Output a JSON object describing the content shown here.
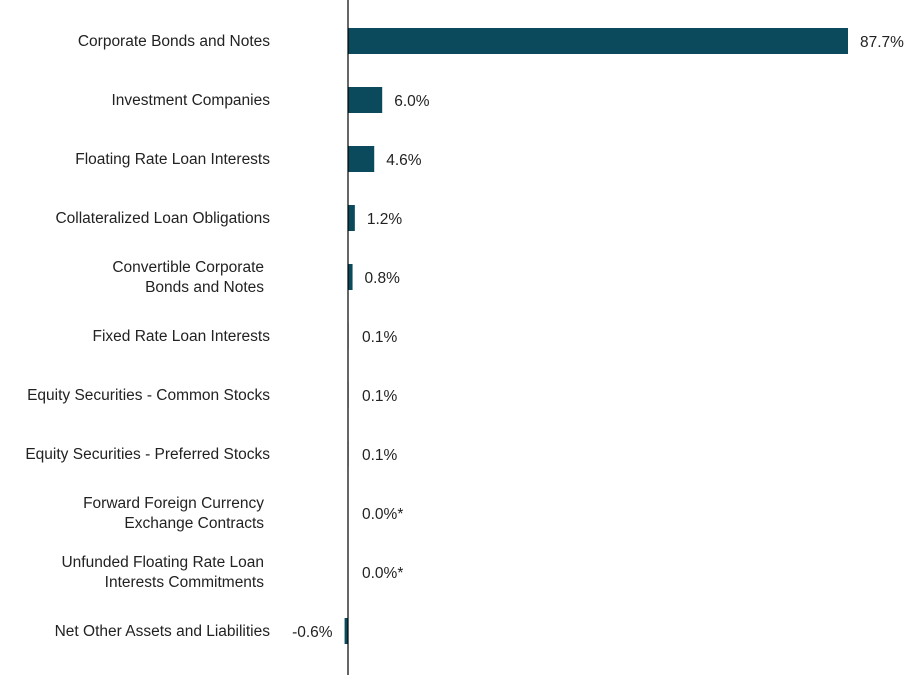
{
  "chart_data": {
    "type": "bar",
    "orientation": "horizontal",
    "title": "",
    "xlabel": "",
    "ylabel": "",
    "grid": false,
    "legend": "none",
    "bar_color": "#0b4a5c",
    "axis_color": "#000000",
    "xlim": [
      -1,
      90
    ],
    "categories": [
      [
        "Corporate Bonds and Notes"
      ],
      [
        "Investment Companies"
      ],
      [
        "Floating Rate Loan Interests"
      ],
      [
        "Collateralized Loan Obligations"
      ],
      [
        "Convertible Corporate",
        "Bonds and Notes"
      ],
      [
        "Fixed Rate Loan Interests"
      ],
      [
        "Equity Securities - Common Stocks"
      ],
      [
        "Equity Securities - Preferred Stocks"
      ],
      [
        "Forward Foreign Currency",
        "Exchange Contracts"
      ],
      [
        "Unfunded Floating Rate Loan",
        "Interests Commitments"
      ],
      [
        "Net Other Assets and Liabilities"
      ]
    ],
    "values": [
      87.7,
      6.0,
      4.6,
      1.2,
      0.8,
      0.1,
      0.1,
      0.1,
      0.0,
      0.0,
      -0.6
    ],
    "data_labels": [
      "87.7%",
      "6.0%",
      "4.6%",
      "1.2%",
      "0.8%",
      "0.1%",
      "0.1%",
      "0.1%",
      "0.0%*",
      "0.0%*",
      "-0.6%"
    ]
  }
}
